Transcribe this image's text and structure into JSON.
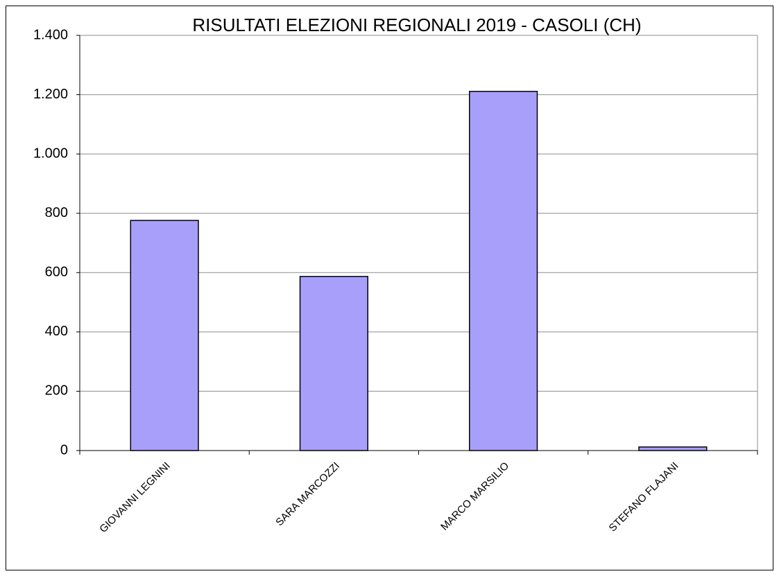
{
  "chart_data": {
    "type": "bar",
    "title": "RISULTATI ELEZIONI REGIONALI 2019 - CASOLI (CH)",
    "categories": [
      "GIOVANNI LEGNINI",
      "SARA MARCOZZI",
      "MARCO MARSILIO",
      "STEFANO FLAJANI"
    ],
    "values": [
      776,
      587,
      1211,
      12
    ],
    "color": "#a89ffb",
    "ylim": [
      0,
      1400
    ],
    "yticks": [
      0,
      200,
      400,
      600,
      800,
      {
        "value": 1000,
        "label": "1.000"
      },
      {
        "value": 1200,
        "label": "1.200"
      },
      {
        "value": 1400,
        "label": "1.400"
      }
    ],
    "grid": true
  }
}
